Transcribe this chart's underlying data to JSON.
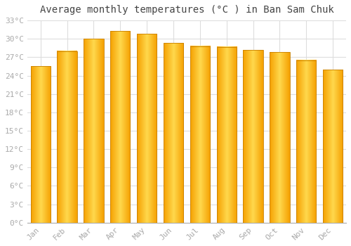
{
  "title": "Average monthly temperatures (°C ) in Ban Sam Chuk",
  "months": [
    "Jan",
    "Feb",
    "Mar",
    "Apr",
    "May",
    "Jun",
    "Jul",
    "Aug",
    "Sep",
    "Oct",
    "Nov",
    "Dec"
  ],
  "values": [
    25.5,
    28.0,
    30.0,
    31.3,
    30.8,
    29.3,
    28.8,
    28.7,
    28.2,
    27.8,
    26.5,
    25.0
  ],
  "bar_color_center": "#FFD84D",
  "bar_color_edge": "#F5A000",
  "bar_border_color": "#C88000",
  "ylim": [
    0,
    33
  ],
  "ytick_step": 3,
  "background_color": "#FFFFFF",
  "grid_color": "#DDDDDD",
  "title_fontsize": 10,
  "tick_fontsize": 8,
  "xlabel_rotation": 45,
  "bar_width": 0.75,
  "figsize": [
    5.0,
    3.5
  ],
  "dpi": 100
}
